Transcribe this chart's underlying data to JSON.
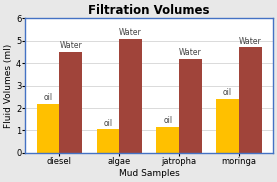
{
  "title": "Filtration Volumes",
  "xlabel": "Mud Samples",
  "ylabel": "Fluid Volumes (ml)",
  "categories": [
    "diesel",
    "algae",
    "jatropha",
    "moringa"
  ],
  "oil_values": [
    2.2,
    1.05,
    1.15,
    2.4
  ],
  "water_values": [
    4.5,
    5.1,
    4.2,
    4.7
  ],
  "oil_color": "#FFC000",
  "water_color": "#A0443A",
  "ylim": [
    0,
    6
  ],
  "yticks": [
    0,
    1,
    2,
    3,
    4,
    5,
    6
  ],
  "bar_width": 0.38,
  "background_color": "#E8E8E8",
  "plot_bg_color": "#FFFFFF",
  "title_fontsize": 8.5,
  "axis_label_fontsize": 6.5,
  "tick_fontsize": 6,
  "annotation_fontsize": 5.5
}
